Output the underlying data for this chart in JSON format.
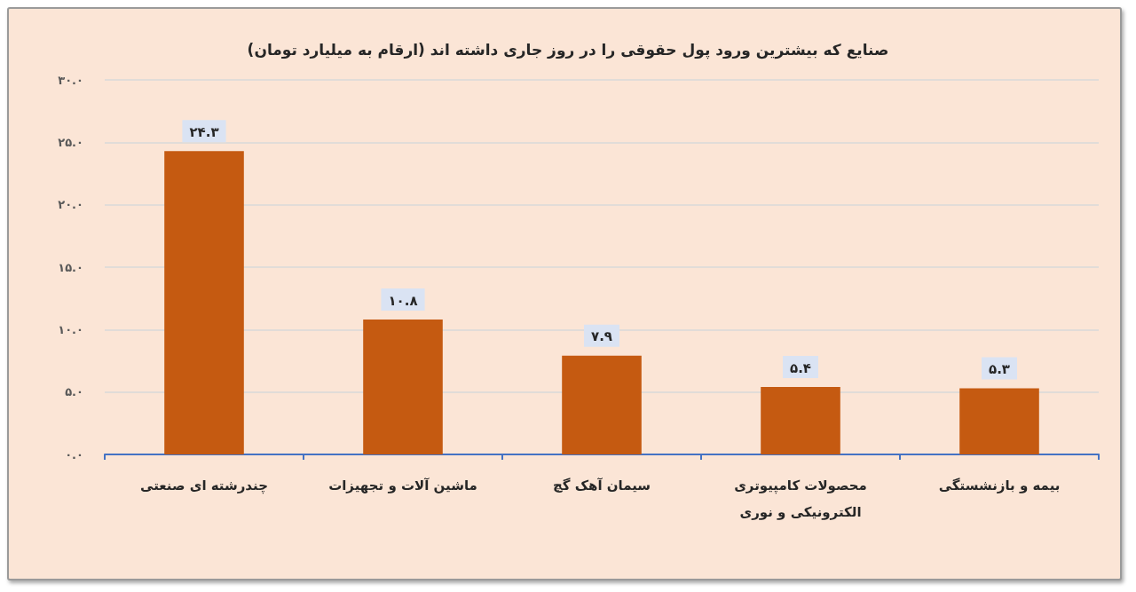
{
  "chart_data": {
    "type": "bar",
    "title": "صنایع که بیشترین ورود پول حقوقی را در روز جاری داشته اند (ارقام به میلیارد تومان)",
    "categories": [
      "چندرشته ای صنعتی",
      "ماشین آلات و تجهیزات",
      "سیمان آهک گچ",
      "محصولات کامپیوتری الکترونیکی و نوری",
      "بیمه و بازنشستگی"
    ],
    "values": [
      24.3,
      10.8,
      7.9,
      5.4,
      5.3
    ],
    "color": "#c55a11",
    "value_labels": [
      "۲۴.۳",
      "۱۰.۸",
      "۷.۹",
      "۵.۴",
      "۵.۳"
    ],
    "ylim": [
      0,
      30
    ],
    "yticks": [
      {
        "value": 0,
        "label": "۰.۰"
      },
      {
        "value": 5,
        "label": "۵.۰"
      },
      {
        "value": 10,
        "label": "۱۰.۰"
      },
      {
        "value": 15,
        "label": "۱۵.۰"
      },
      {
        "value": 20,
        "label": "۲۰.۰"
      },
      {
        "value": 25,
        "label": "۲۵.۰"
      },
      {
        "value": 30,
        "label": "۳۰.۰"
      }
    ],
    "grid": "y"
  }
}
